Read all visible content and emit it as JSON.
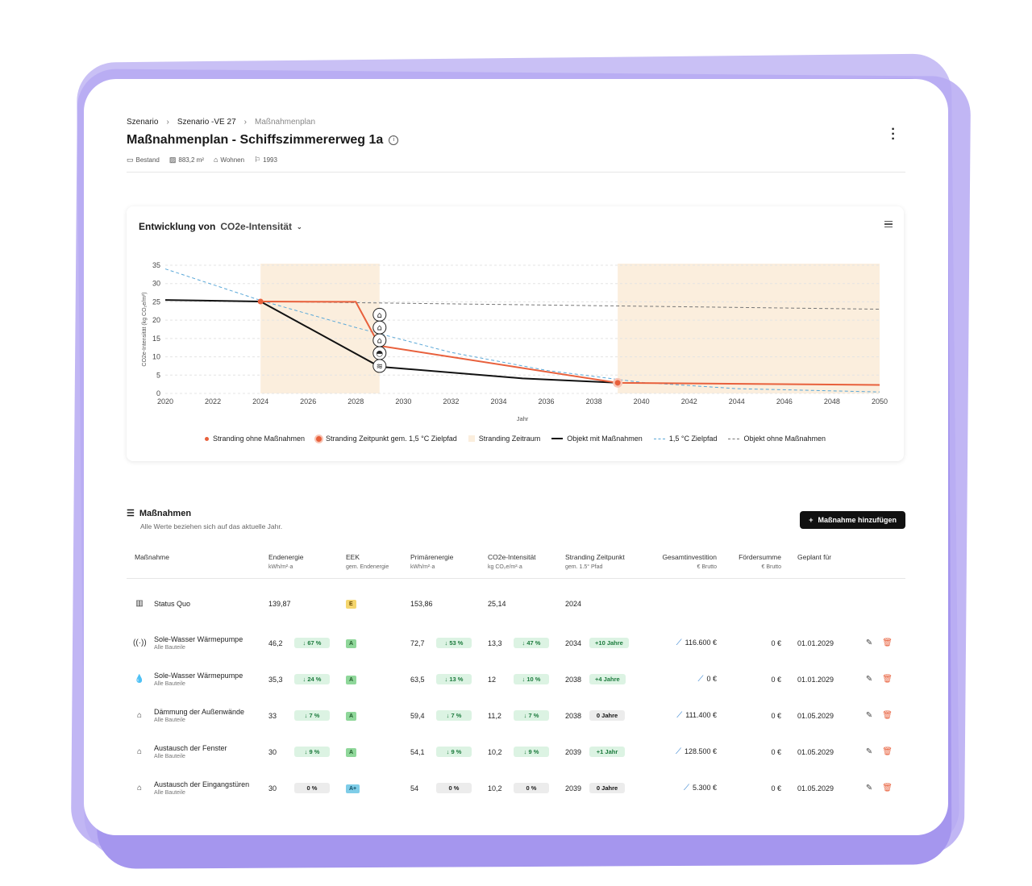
{
  "breadcrumb": [
    "Szenario",
    "Szenario -VE 27",
    "Maßnahmenplan"
  ],
  "page_title": "Maßnahmenplan - Schiffszimmererweg 1a",
  "meta": {
    "type": "Bestand",
    "area": "883,2 m²",
    "usage": "Wohnen",
    "year": "1993"
  },
  "icons": {
    "info": "info-icon",
    "kebab": "kebab-menu-icon",
    "chart_menu": "hamburger-menu-icon",
    "add": "plus-icon",
    "edit": "edit-icon",
    "delete": "trash-icon",
    "trend": "trend-up-icon"
  },
  "colors": {
    "stranding": "#e8603c",
    "target_path": "#5ba8d8",
    "with_measures": "#111111",
    "without_measures": "#777777",
    "stranding_period": "#fbeedd",
    "card_border": "#a596ee"
  },
  "chart": {
    "title_prefix": "Entwicklung von",
    "metric": "CO2e-Intensität",
    "ylabel": "CO2e-Intensität (kg CO₂e/m²)",
    "xlabel": "Jahr"
  },
  "chart_data": {
    "type": "line",
    "title": "Entwicklung von CO2e-Intensität",
    "xlabel": "Jahr",
    "ylabel": "CO2e-Intensität (kg CO₂e/m²)",
    "xlim": [
      2020,
      2050
    ],
    "ylim": [
      0,
      35
    ],
    "xticks": [
      2020,
      2022,
      2024,
      2026,
      2028,
      2030,
      2032,
      2034,
      2036,
      2038,
      2040,
      2042,
      2044,
      2046,
      2048,
      2050
    ],
    "yticks": [
      0,
      5,
      10,
      15,
      20,
      25,
      30,
      35
    ],
    "grid": true,
    "series": [
      {
        "name": "Objekt mit Maßnahmen",
        "style": "solid",
        "color": "#111111",
        "x": [
          2020,
          2024,
          2029,
          2035,
          2039
        ],
        "y": [
          25.5,
          25.1,
          7.3,
          4.1,
          2.9
        ]
      },
      {
        "name": "Objekt ohne Maßnahmen",
        "style": "dashed",
        "color": "#777777",
        "x": [
          2024,
          2050
        ],
        "y": [
          25.1,
          23.0
        ]
      },
      {
        "name": "1,5 °C Zielpfad",
        "style": "dashed",
        "color": "#5ba8d8",
        "x": [
          2020,
          2024,
          2028,
          2032,
          2036,
          2040,
          2044,
          2050
        ],
        "y": [
          34,
          25.4,
          18.0,
          11.2,
          6.3,
          3.0,
          1.3,
          0.4
        ]
      },
      {
        "name": "Stranding",
        "style": "solid",
        "color": "#e8603c",
        "x": [
          2024,
          2028,
          2029,
          2039,
          2050
        ],
        "y": [
          25.1,
          25.0,
          13.0,
          2.9,
          2.3
        ]
      }
    ],
    "stranding_points": [
      {
        "label": "Stranding ohne Maßnahmen",
        "x": 2024,
        "y": 25.1
      },
      {
        "label": "Stranding Zeitpunkt gem. 1,5 °C Zielpfad",
        "x": 2039,
        "y": 2.9
      }
    ],
    "stranding_periods": [
      [
        2024,
        2029
      ],
      [
        2039,
        2050
      ]
    ],
    "measure_markers": {
      "x": 2029,
      "y": [
        21.5,
        18.0,
        14.5,
        11.0,
        7.5
      ],
      "icons": [
        "house-icon",
        "house-icon",
        "house-icon",
        "water-drop-icon",
        "heat-pump-icon"
      ]
    },
    "legend_position": "bottom"
  },
  "legend": [
    {
      "label": "Stranding ohne Maßnahmen",
      "kind": "dot"
    },
    {
      "label": "Stranding Zeitpunkt gem. 1,5 °C Zielpfad",
      "kind": "ring"
    },
    {
      "label": "Stranding Zeitraum",
      "kind": "rect"
    },
    {
      "label": "Objekt mit Maßnahmen",
      "kind": "line"
    },
    {
      "label": "1,5 °C Zielpfad",
      "kind": "dash-blue"
    },
    {
      "label": "Objekt ohne Maßnahmen",
      "kind": "dash-grey"
    }
  ],
  "section": {
    "title": "Maßnahmen",
    "subtitle": "Alle Werte beziehen sich auf das aktuelle Jahr.",
    "add_button": "Maßnahme hinzufügen"
  },
  "table": {
    "headers": [
      {
        "label": "Maßnahme",
        "unit": ""
      },
      {
        "label": "Endenergie",
        "unit": "kWh/m²·a"
      },
      {
        "label": "EEK",
        "unit": "gem. Endenergie"
      },
      {
        "label": "Primärenergie",
        "unit": "kWh/m²·a"
      },
      {
        "label": "CO2e-Intensität",
        "unit": "kg CO₂e/m²·a"
      },
      {
        "label": "Stranding Zeitpunkt",
        "unit": "gem. 1.5° Pfad"
      },
      {
        "label": "Gesamtinvestition",
        "unit": "€ Brutto"
      },
      {
        "label": "Fördersumme",
        "unit": "€ Brutto"
      },
      {
        "label": "Geplant für",
        "unit": ""
      }
    ],
    "rows": [
      {
        "icon": "building-icon",
        "name": "Status Quo",
        "sub": "",
        "end": "139,87",
        "end_delta": "",
        "eek": "E",
        "prim": "153,86",
        "prim_delta": "",
        "co2": "25,14",
        "co2_delta": "",
        "year": "2024",
        "year_delta": "",
        "invest": "",
        "funding": "",
        "date": ""
      },
      {
        "icon": "heat-pump-icon",
        "name": "Sole-Wasser Wärmepumpe",
        "sub": "Alle Bauteile",
        "end": "46,2",
        "end_delta": "67 %",
        "eek": "A",
        "prim": "72,7",
        "prim_delta": "53 %",
        "co2": "13,3",
        "co2_delta": "47 %",
        "year": "2034",
        "year_delta": "+10 Jahre",
        "invest": "116.600 €",
        "funding": "0 €",
        "date": "01.01.2029"
      },
      {
        "icon": "water-drop-icon",
        "name": "Sole-Wasser Wärmepumpe",
        "sub": "Alle Bauteile",
        "end": "35,3",
        "end_delta": "24 %",
        "eek": "A",
        "prim": "63,5",
        "prim_delta": "13 %",
        "co2": "12",
        "co2_delta": "10 %",
        "year": "2038",
        "year_delta": "+4 Jahre",
        "invest": "0 €",
        "funding": "0 €",
        "date": "01.01.2029"
      },
      {
        "icon": "house-insulation-icon",
        "name": "Dämmung der Außenwände",
        "sub": "Alle Bauteile",
        "end": "33",
        "end_delta": "7 %",
        "eek": "A",
        "prim": "59,4",
        "prim_delta": "7 %",
        "co2": "11,2",
        "co2_delta": "7 %",
        "year": "2038",
        "year_delta": "0 Jahre",
        "invest": "111.400 €",
        "funding": "0 €",
        "date": "01.05.2029"
      },
      {
        "icon": "house-window-icon",
        "name": "Austausch der Fenster",
        "sub": "Alle Bauteile",
        "end": "30",
        "end_delta": "9 %",
        "eek": "A",
        "prim": "54,1",
        "prim_delta": "9 %",
        "co2": "10,2",
        "co2_delta": "9 %",
        "year": "2039",
        "year_delta": "+1 Jahr",
        "invest": "128.500 €",
        "funding": "0 €",
        "date": "01.05.2029"
      },
      {
        "icon": "house-door-icon",
        "name": "Austausch der Eingangstüren",
        "sub": "Alle Bauteile",
        "end": "30",
        "end_delta": "0 %",
        "eek": "A+",
        "prim": "54",
        "prim_delta": "0 %",
        "co2": "10,2",
        "co2_delta": "0 %",
        "year": "2039",
        "year_delta": "0 Jahre",
        "invest": "5.300 €",
        "funding": "0 €",
        "date": "01.05.2029"
      }
    ]
  }
}
